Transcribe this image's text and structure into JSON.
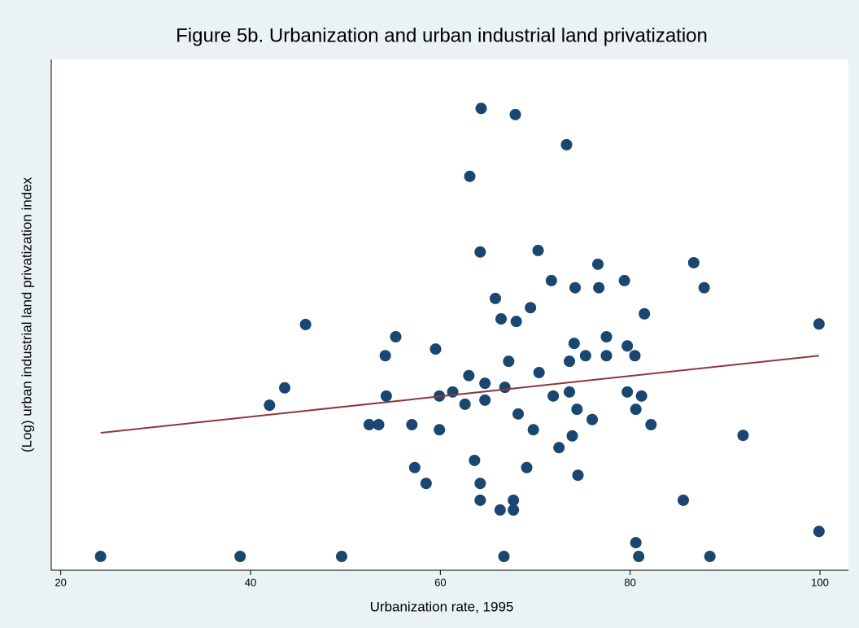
{
  "chart_data": {
    "type": "scatter",
    "title": "Figure 5b. Urbanization and urban industrial land privatization",
    "x_label": "Urbanization rate, 1995",
    "y_label": "(Log) urban industrial land privatization index",
    "xlim": [
      19,
      103
    ],
    "xticks": [
      20,
      40,
      60,
      80,
      100
    ],
    "ylim": [
      0,
      100
    ],
    "color": "#1a476f",
    "x": [
      24.2,
      38.9,
      49.6,
      66.7,
      80.9,
      88.4,
      80.6,
      99.9,
      42.0,
      43.6,
      45.8,
      52.5,
      53.5,
      54.2,
      54.3,
      55.3,
      57.0,
      57.3,
      58.5,
      59.5,
      59.9,
      59.9,
      61.3,
      62.6,
      63.0,
      63.1,
      63.6,
      64.2,
      64.2,
      64.3,
      64.2,
      64.7,
      64.7,
      65.8,
      66.4,
      66.8,
      66.3,
      67.2,
      67.7,
      67.7,
      67.9,
      68.0,
      68.2,
      69.1,
      69.5,
      69.8,
      70.3,
      70.4,
      71.7,
      71.9,
      72.5,
      73.3,
      73.6,
      73.6,
      73.9,
      74.1,
      74.2,
      74.4,
      74.5,
      75.3,
      76.0,
      76.6,
      76.7,
      77.5,
      77.5,
      79.4,
      79.7,
      79.7,
      80.5,
      80.6,
      81.2,
      81.5,
      82.2,
      85.6,
      86.7,
      87.8,
      91.9,
      99.9
    ],
    "values": [
      2.7,
      2.7,
      2.7,
      2.7,
      2.7,
      2.7,
      5.4,
      7.6,
      32.3,
      35.7,
      48.1,
      28.5,
      28.5,
      42.0,
      34.1,
      45.7,
      28.5,
      20.1,
      17.0,
      43.3,
      34.1,
      27.5,
      34.9,
      32.5,
      38.1,
      77.1,
      21.5,
      17.0,
      13.7,
      90.4,
      62.3,
      36.6,
      33.3,
      53.2,
      49.2,
      35.8,
      11.8,
      40.9,
      13.7,
      11.8,
      89.2,
      48.7,
      30.6,
      20.1,
      51.4,
      27.5,
      62.6,
      38.7,
      56.7,
      34.1,
      24.0,
      83.3,
      40.9,
      34.9,
      26.3,
      44.4,
      55.3,
      31.5,
      18.6,
      42.0,
      29.5,
      59.9,
      55.3,
      45.7,
      42.0,
      56.7,
      43.9,
      34.9,
      42.0,
      31.5,
      34.1,
      50.2,
      28.5,
      13.7,
      60.2,
      55.3,
      26.4,
      48.2
    ],
    "fit_line": {
      "color": "#90353b",
      "x": [
        24.2,
        99.9
      ],
      "values": [
        26.9,
        42.0
      ]
    }
  }
}
